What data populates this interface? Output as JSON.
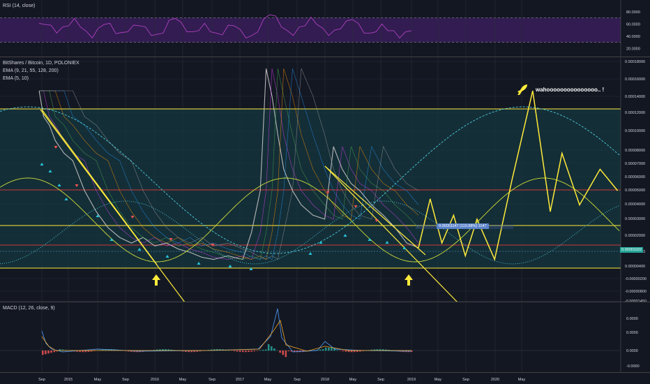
{
  "panes": {
    "rsi": {
      "label": "RSI (14, close)"
    },
    "main": {
      "label_symbol": "BitShares / Bitcoin, 1D, POLONIEX",
      "label_ema1": "EMA (9, 21, 55, 128, 200)",
      "label_ema2": "EMA (5, 10)"
    },
    "macd": {
      "label": "MACD (12, 26, close, 9)"
    }
  },
  "annotations": {
    "wahoo": "wahooooooooooooooo.. !",
    "measure": "0.00001147 (110.98%) 1147",
    "last_price": "0.00001022"
  },
  "colors": {
    "background": "#131722",
    "rsi_line": "#b040c0",
    "rsi_band": "#3b1e5e",
    "trendline": "#ffeb3b",
    "red_level": "#d03838",
    "cyan": "#4dd0e1",
    "teal_zone": "#163b44"
  },
  "chart_data": [
    {
      "type": "line",
      "name": "rsi",
      "title": "RSI (14, close)",
      "y_ticks": [
        "80.0000",
        "60.0000",
        "40.0000",
        "20.0000"
      ],
      "band": [
        30,
        70
      ],
      "values": [
        58,
        62,
        55,
        48,
        52,
        60,
        66,
        58,
        45,
        40,
        50,
        62,
        58,
        47,
        43,
        50,
        55,
        60,
        52,
        44,
        40,
        48,
        63,
        72,
        60,
        50,
        44,
        52,
        58,
        50,
        42,
        45,
        55,
        60,
        48,
        40,
        38,
        50,
        65,
        78,
        70,
        58,
        46,
        44,
        52,
        60,
        68,
        62,
        50,
        44,
        47,
        55,
        62,
        70,
        58,
        48,
        42,
        50,
        57,
        52,
        46,
        40,
        44,
        52
      ]
    },
    {
      "type": "line",
      "name": "price",
      "title": "BitShares / Bitcoin, 1D, POLONIEX",
      "log_scale": true,
      "y_ticks": [
        "0.00018000",
        "0.00016000",
        "0.00014000",
        "0.00012000",
        "0.00010000",
        "0.00008000",
        "0.00007000",
        "0.00006000",
        "0.00005000",
        "0.00004000",
        "0.00003000",
        "0.00002000",
        "0.00001023",
        "0.00000400",
        "-0.00000200",
        "-0.00000800",
        "-0.00001450"
      ],
      "x_ticks": [
        "Sep",
        "2015",
        "May",
        "Sep",
        "2016",
        "May",
        "Sep",
        "2017",
        "May",
        "Sep",
        "2018",
        "May",
        "Sep",
        "2019",
        "May",
        "Sep",
        "2020",
        "May"
      ],
      "x_tick_index": [
        0,
        1,
        2,
        3,
        4,
        5,
        6,
        7,
        8,
        9,
        10,
        11,
        12,
        13,
        14,
        15,
        16,
        17
      ],
      "series_x": [
        0.05,
        0.2,
        0.4,
        0.6,
        0.9,
        1.2,
        1.6,
        2.0,
        2.4,
        2.8,
        3.2,
        3.6,
        4.0,
        4.4,
        4.8,
        5.2,
        5.6,
        6.0,
        6.5,
        7.0,
        7.3,
        7.6,
        7.8,
        8.0,
        8.2,
        8.4,
        8.7,
        9.0,
        9.4,
        9.8,
        10.1,
        10.4,
        10.7,
        11.0,
        11.4,
        11.8,
        12.2,
        12.6,
        13.0
      ],
      "series_y": [
        0.00012,
        8e-05,
        7e-05,
        5.5e-05,
        4.5e-05,
        4e-05,
        2.5e-05,
        1.8e-05,
        1.4e-05,
        1.2e-05,
        1.1e-05,
        1.2e-05,
        1.05e-05,
        1.1e-05,
        1e-05,
        9.5e-06,
        8.8e-06,
        8.5e-06,
        9e-06,
        8.5e-06,
        1.3e-05,
        2.5e-05,
        0.00017,
        0.00011,
        6e-05,
        3.5e-05,
        2.5e-05,
        2e-05,
        1.7e-05,
        1.6e-05,
        5e-05,
        3.5e-05,
        2.8e-05,
        2.5e-05,
        2e-05,
        1.7e-05,
        1.4e-05,
        1.1e-05,
        1.022e-05
      ],
      "projection_x": [
        13.0,
        13.4,
        13.8,
        14.2,
        14.6,
        15.0,
        15.6,
        16.2,
        16.9,
        17.5,
        17.9,
        18.5,
        19.2,
        19.8
      ],
      "projection_y": [
        1.022e-05,
        2.2e-05,
        1.1e-05,
        1.7e-05,
        9e-06,
        1.6e-05,
        8.5e-06,
        3e-05,
        0.00012,
        1.8e-05,
        4.5e-05,
        2e-05,
        3.5e-05,
        2.5e-05
      ]
    },
    {
      "type": "line",
      "name": "macd",
      "title": "MACD (12, 26, close, 9)",
      "y_ticks": [
        "0.0000",
        "0.0000",
        "0.0000",
        "-0.0000"
      ]
    }
  ]
}
